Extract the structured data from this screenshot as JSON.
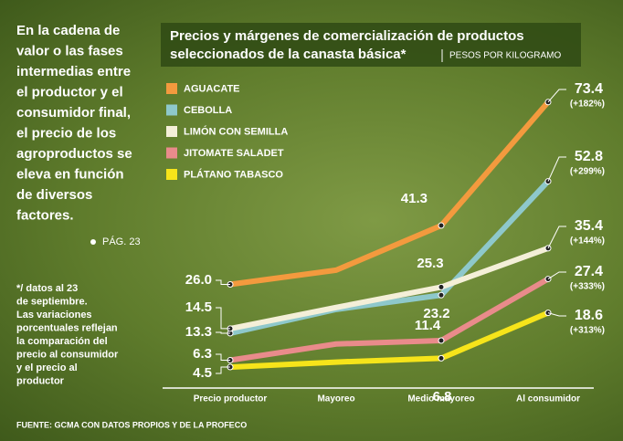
{
  "intro": [
    "En la cadena de",
    "valor o las fases",
    "intermedias entre",
    "el productor y el",
    "consumidor final,",
    "el precio de los",
    "agroproductos se",
    "eleva en función",
    "de diversos",
    "factores."
  ],
  "page_ref": "PÁG. 23",
  "footnote": [
    "*/ datos al 23",
    "de septiembre.",
    "Las variaciones",
    "porcentuales reflejan",
    "la comparación del",
    "precio al consumidor",
    "y el precio al",
    "productor"
  ],
  "source": "FUENTE: GCMA CON DATOS PROPIOS Y DE LA PROFECO",
  "chart_data": {
    "type": "line",
    "title": "Precios y márgenes de comercialización de productos",
    "title_line2": "seleccionados de la canasta básica*",
    "subtitle": "PESOS POR KILOGRAMO",
    "categories": [
      "Precio productor",
      "Mayoreo",
      "Medio mayoreo",
      "Al consumidor"
    ],
    "ylim": [
      0,
      80
    ],
    "series": [
      {
        "name": "AGUACATE",
        "color": "#f39a3e",
        "values": [
          26.0,
          29.7,
          41.3,
          73.4
        ],
        "value_labels": [
          "26.0",
          null,
          "41.3",
          "73.4"
        ],
        "change_label": "(+182%)"
      },
      {
        "name": "CEBOLLA",
        "color": "#8ec8cb",
        "values": [
          13.3,
          19.5,
          23.2,
          52.8
        ],
        "value_labels": [
          "13.3",
          null,
          "23.2",
          "52.8"
        ],
        "change_label": "(+299%)"
      },
      {
        "name": "LIMÓN CON SEMILLA",
        "color": "#f4efd8",
        "values": [
          14.5,
          20.0,
          25.3,
          35.4
        ],
        "value_labels": [
          "14.5",
          null,
          "25.3",
          "35.4"
        ],
        "change_label": "(+144%)"
      },
      {
        "name": "JITOMATE SALADET",
        "color": "#e98b8b",
        "values": [
          6.3,
          10.5,
          11.4,
          27.4
        ],
        "value_labels": [
          "6.3",
          null,
          "11.4",
          "27.4"
        ],
        "change_label": "(+333%)"
      },
      {
        "name": "PLÁTANO TABASCO",
        "color": "#f6e41a",
        "values": [
          4.5,
          5.8,
          6.8,
          18.6
        ],
        "value_labels": [
          "4.5",
          null,
          "6.8",
          "18.6"
        ],
        "change_label": "(+313%)"
      }
    ]
  }
}
